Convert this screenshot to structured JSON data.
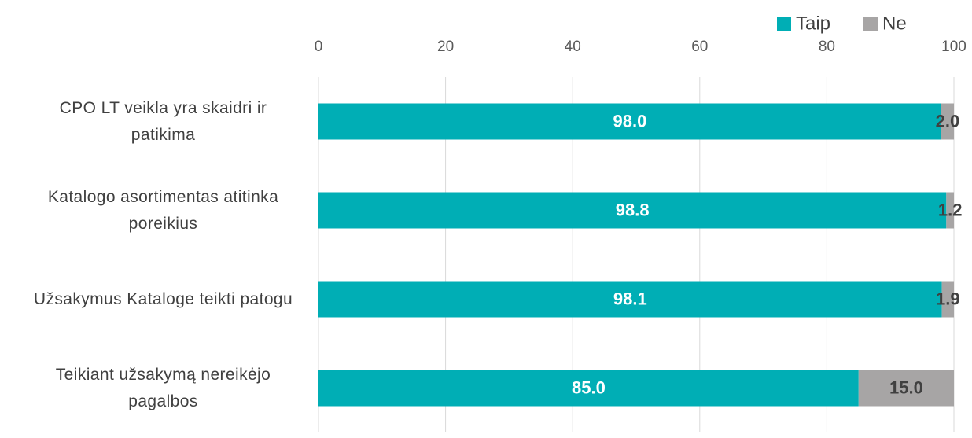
{
  "chart_data": {
    "type": "stacked_bar_horizontal",
    "categories": [
      "CPO LT veikla yra skaidri ir patikima",
      "Katalogo asortimentas atitinka poreikius",
      "Užsakymus Kataloge teikti patogu",
      "Teikiant užsakymą nereikėjo pagalbos"
    ],
    "series": [
      {
        "name": "Taip",
        "color": "#00aeb5",
        "values": [
          98,
          98.8,
          98.1,
          85
        ],
        "value_labels": [
          "98.0",
          "98.8",
          "98.1",
          "85.0"
        ]
      },
      {
        "name": "Ne",
        "color": "#a7a5a5",
        "values": [
          2,
          1.2,
          1.9,
          15
        ],
        "value_labels": [
          "2.0",
          "1.2",
          "1.9",
          "15.0"
        ]
      }
    ],
    "xlim": [
      0,
      100
    ],
    "xticks": [
      0,
      20,
      40,
      60,
      80,
      100
    ],
    "grid": true,
    "legend": "top-right"
  }
}
